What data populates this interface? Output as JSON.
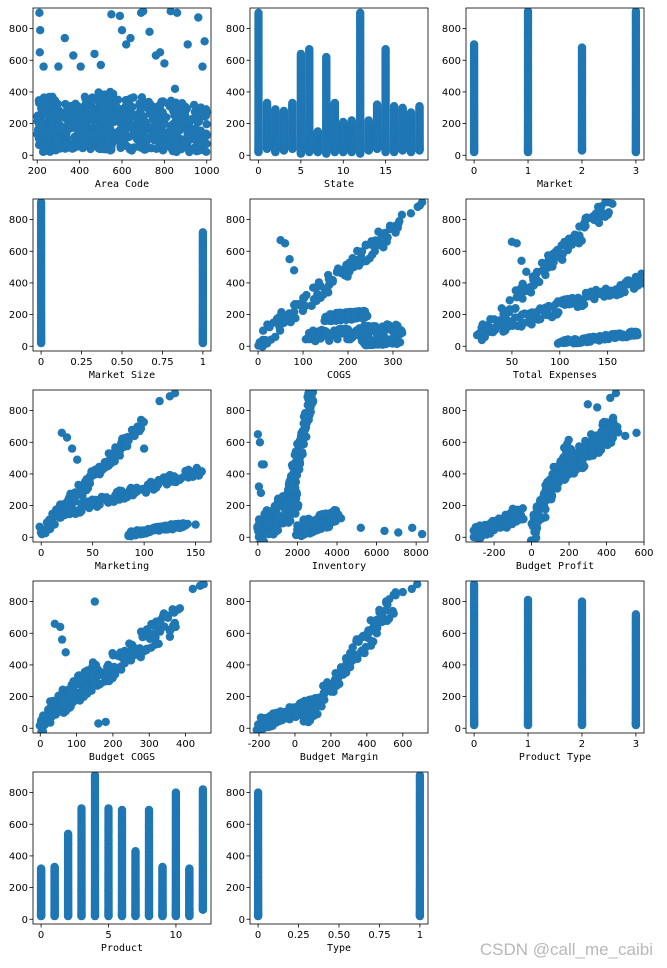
{
  "figure": {
    "layout": "5 rows x 3 columns grid of scatter subplots",
    "marker_color": "#1f77b4",
    "watermark": "CSDN @call_me_caibi"
  },
  "chart_data": [
    {
      "type": "scatter",
      "xlabel": "Area Code",
      "ylabel": "",
      "xlim": [
        180,
        1020
      ],
      "ylim": [
        -30,
        930
      ],
      "xticks": [
        200,
        400,
        600,
        800,
        1000
      ],
      "yticks": [
        0,
        200,
        400,
        600,
        800
      ],
      "clusters": [
        {
          "x": [
            200,
            290
          ],
          "y": [
            20,
            370
          ]
        },
        {
          "x": [
            280,
            440
          ],
          "y": [
            40,
            330
          ]
        },
        {
          "x": [
            420,
            560
          ],
          "y": [
            30,
            400
          ]
        },
        {
          "x": [
            500,
            700
          ],
          "y": [
            30,
            380
          ]
        },
        {
          "x": [
            680,
            860
          ],
          "y": [
            30,
            350
          ]
        },
        {
          "x": [
            840,
            1000
          ],
          "y": [
            20,
            330
          ]
        }
      ],
      "points": [
        [
          210,
          900
        ],
        [
          214,
          790
        ],
        [
          212,
          650
        ],
        [
          230,
          560
        ],
        [
          300,
          560
        ],
        [
          330,
          740
        ],
        [
          370,
          630
        ],
        [
          405,
          560
        ],
        [
          470,
          640
        ],
        [
          500,
          570
        ],
        [
          550,
          890
        ],
        [
          590,
          880
        ],
        [
          600,
          790
        ],
        [
          620,
          700
        ],
        [
          640,
          740
        ],
        [
          690,
          900
        ],
        [
          700,
          910
        ],
        [
          730,
          780
        ],
        [
          760,
          630
        ],
        [
          780,
          650
        ],
        [
          800,
          580
        ],
        [
          830,
          910
        ],
        [
          860,
          900
        ],
        [
          910,
          700
        ],
        [
          960,
          870
        ],
        [
          990,
          720
        ],
        [
          980,
          560
        ],
        [
          520,
          350
        ],
        [
          850,
          420
        ]
      ]
    },
    {
      "type": "scatter",
      "xlabel": "State",
      "ylabel": "",
      "xlim": [
        -1,
        20
      ],
      "ylim": [
        -30,
        930
      ],
      "xticks": [
        0,
        5,
        10,
        15
      ],
      "yticks": [
        0,
        200,
        400,
        600,
        800
      ],
      "columns": [
        {
          "x": 0,
          "y": [
            20,
            900
          ]
        },
        {
          "x": 1,
          "y": [
            40,
            330
          ]
        },
        {
          "x": 2,
          "y": [
            20,
            290
          ]
        },
        {
          "x": 3,
          "y": [
            30,
            280
          ]
        },
        {
          "x": 4,
          "y": [
            40,
            330
          ]
        },
        {
          "x": 5,
          "y": [
            10,
            640
          ]
        },
        {
          "x": 6,
          "y": [
            20,
            670
          ]
        },
        {
          "x": 7,
          "y": [
            20,
            150
          ]
        },
        {
          "x": 8,
          "y": [
            10,
            620
          ]
        },
        {
          "x": 9,
          "y": [
            20,
            330
          ]
        },
        {
          "x": 10,
          "y": [
            20,
            210
          ]
        },
        {
          "x": 11,
          "y": [
            20,
            220
          ]
        },
        {
          "x": 12,
          "y": [
            10,
            900
          ]
        },
        {
          "x": 13,
          "y": [
            30,
            220
          ]
        },
        {
          "x": 14,
          "y": [
            40,
            320
          ]
        },
        {
          "x": 15,
          "y": [
            20,
            670
          ]
        },
        {
          "x": 16,
          "y": [
            20,
            310
          ]
        },
        {
          "x": 17,
          "y": [
            30,
            300
          ]
        },
        {
          "x": 18,
          "y": [
            20,
            270
          ]
        },
        {
          "x": 19,
          "y": [
            30,
            310
          ]
        }
      ]
    },
    {
      "type": "scatter",
      "xlabel": "Market",
      "ylabel": "",
      "xlim": [
        -0.15,
        3.15
      ],
      "ylim": [
        -30,
        930
      ],
      "xticks": [
        0,
        1,
        2,
        3
      ],
      "yticks": [
        0,
        200,
        400,
        600,
        800
      ],
      "columns": [
        {
          "x": 0,
          "y": [
            20,
            700
          ]
        },
        {
          "x": 1,
          "y": [
            20,
            910
          ]
        },
        {
          "x": 2,
          "y": [
            30,
            680
          ]
        },
        {
          "x": 3,
          "y": [
            20,
            910
          ]
        }
      ]
    },
    {
      "type": "scatter",
      "xlabel": "Market Size",
      "ylabel": "",
      "xlim": [
        -0.05,
        1.05
      ],
      "ylim": [
        -30,
        930
      ],
      "xticks": [
        0.0,
        0.25,
        0.5,
        0.75,
        1.0
      ],
      "yticks": [
        0,
        200,
        400,
        600,
        800
      ],
      "columns": [
        {
          "x": 0,
          "y": [
            20,
            910
          ]
        },
        {
          "x": 1,
          "y": [
            20,
            720
          ]
        }
      ]
    },
    {
      "type": "scatter",
      "xlabel": "COGS",
      "ylabel": "",
      "xlim": [
        -18,
        378
      ],
      "ylim": [
        -30,
        930
      ],
      "xticks": [
        0,
        100,
        200,
        300
      ],
      "yticks": [
        0,
        200,
        400,
        600,
        800
      ],
      "bands": [
        {
          "from": [
            0,
            30
          ],
          "to": [
            320,
            780
          ],
          "spread": 55
        },
        {
          "from": [
            110,
            60
          ],
          "to": [
            320,
            110
          ],
          "spread": 40
        },
        {
          "from": [
            150,
            180
          ],
          "to": [
            240,
            200
          ],
          "spread": 25
        },
        {
          "from": [
            235,
            20
          ],
          "to": [
            310,
            30
          ],
          "spread": 15
        }
      ],
      "points": [
        [
          50,
          670
        ],
        [
          60,
          650
        ],
        [
          70,
          550
        ],
        [
          80,
          480
        ],
        [
          360,
          890
        ],
        [
          365,
          910
        ],
        [
          355,
          880
        ],
        [
          320,
          830
        ],
        [
          340,
          840
        ],
        [
          310,
          130
        ]
      ]
    },
    {
      "type": "scatter",
      "xlabel": "Total Expenses",
      "ylabel": "",
      "xlim": [
        2,
        188
      ],
      "ylim": [
        -30,
        930
      ],
      "xticks": [
        50,
        100,
        150
      ],
      "yticks": [
        0,
        200,
        400,
        600,
        800
      ],
      "bands": [
        {
          "from": [
            12,
            30
          ],
          "to": [
            150,
            900
          ],
          "spread": 60
        },
        {
          "from": [
            40,
            120
          ],
          "to": [
            185,
            420
          ],
          "spread": 40
        },
        {
          "from": [
            100,
            20
          ],
          "to": [
            180,
            80
          ],
          "spread": 15
        }
      ],
      "points": [
        [
          50,
          660
        ],
        [
          55,
          650
        ],
        [
          60,
          540
        ],
        [
          65,
          470
        ],
        [
          140,
          880
        ],
        [
          150,
          910
        ],
        [
          155,
          900
        ],
        [
          120,
          650
        ],
        [
          185,
          410
        ],
        [
          175,
          80
        ]
      ]
    },
    {
      "type": "scatter",
      "xlabel": "Marketing",
      "ylabel": "",
      "xlim": [
        -8,
        165
      ],
      "ylim": [
        -30,
        930
      ],
      "xticks": [
        0,
        50,
        100,
        150
      ],
      "yticks": [
        0,
        200,
        400,
        600,
        800
      ],
      "bands": [
        {
          "from": [
            0,
            30
          ],
          "to": [
            100,
            720
          ],
          "spread": 40
        },
        {
          "from": [
            20,
            150
          ],
          "to": [
            155,
            420
          ],
          "spread": 30
        },
        {
          "from": [
            85,
            20
          ],
          "to": [
            140,
            80
          ],
          "spread": 15
        }
      ],
      "points": [
        [
          20,
          660
        ],
        [
          25,
          630
        ],
        [
          30,
          560
        ],
        [
          35,
          490
        ],
        [
          125,
          890
        ],
        [
          130,
          910
        ],
        [
          115,
          860
        ],
        [
          100,
          560
        ],
        [
          155,
          410
        ],
        [
          150,
          80
        ]
      ]
    },
    {
      "type": "scatter",
      "xlabel": "Inventory",
      "ylabel": "",
      "xlim": [
        -400,
        8600
      ],
      "ylim": [
        -30,
        930
      ],
      "xticks": [
        0,
        2000,
        4000,
        6000,
        8000
      ],
      "yticks": [
        0,
        200,
        400,
        600,
        800
      ],
      "bands": [
        {
          "from": [
            0,
            20
          ],
          "to": [
            2000,
            250
          ],
          "spread": 100
        },
        {
          "from": [
            1500,
            200
          ],
          "to": [
            2700,
            900
          ],
          "spread": 60
        },
        {
          "from": [
            2000,
            50
          ],
          "to": [
            4000,
            130
          ],
          "spread": 50
        }
      ],
      "points": [
        [
          0,
          650
        ],
        [
          100,
          600
        ],
        [
          200,
          460
        ],
        [
          300,
          460
        ],
        [
          50,
          320
        ],
        [
          150,
          280
        ],
        [
          4200,
          120
        ],
        [
          5200,
          60
        ],
        [
          6400,
          40
        ],
        [
          7100,
          30
        ],
        [
          7800,
          60
        ],
        [
          8300,
          20
        ],
        [
          2600,
          900
        ],
        [
          2650,
          910
        ]
      ]
    },
    {
      "type": "scatter",
      "xlabel": "Budget Profit",
      "ylabel": "",
      "xlim": [
        -350,
        600
      ],
      "ylim": [
        -30,
        930
      ],
      "xticks": [
        -200,
        0,
        200,
        400,
        600
      ],
      "yticks": [
        0,
        200,
        400,
        600,
        800
      ],
      "bands": [
        {
          "from": [
            -300,
            20
          ],
          "to": [
            -50,
            150
          ],
          "spread": 40
        },
        {
          "from": [
            0,
            30
          ],
          "to": [
            200,
            550
          ],
          "spread": 80
        },
        {
          "from": [
            150,
            400
          ],
          "to": [
            450,
            700
          ],
          "spread": 80
        }
      ],
      "points": [
        [
          -300,
          30
        ],
        [
          -250,
          40
        ],
        [
          -200,
          60
        ],
        [
          -150,
          90
        ],
        [
          -100,
          180
        ],
        [
          420,
          880
        ],
        [
          450,
          910
        ],
        [
          560,
          660
        ],
        [
          500,
          640
        ],
        [
          350,
          820
        ],
        [
          300,
          840
        ]
      ]
    },
    {
      "type": "scatter",
      "xlabel": "Budget COGS",
      "ylabel": "",
      "xlim": [
        -20,
        470
      ],
      "ylim": [
        -30,
        930
      ],
      "xticks": [
        0,
        100,
        200,
        300,
        400
      ],
      "yticks": [
        0,
        200,
        400,
        600,
        800
      ],
      "bands": [
        {
          "from": [
            0,
            30
          ],
          "to": [
            160,
            380
          ],
          "spread": 70
        },
        {
          "from": [
            80,
            200
          ],
          "to": [
            380,
            700
          ],
          "spread": 80
        }
      ],
      "points": [
        [
          40,
          660
        ],
        [
          55,
          640
        ],
        [
          60,
          560
        ],
        [
          70,
          480
        ],
        [
          440,
          900
        ],
        [
          450,
          910
        ],
        [
          420,
          880
        ],
        [
          380,
          750
        ],
        [
          150,
          800
        ],
        [
          280,
          600
        ],
        [
          160,
          30
        ],
        [
          180,
          40
        ]
      ]
    },
    {
      "type": "scatter",
      "xlabel": "Budget Margin",
      "ylabel": "",
      "xlim": [
        -250,
        740
      ],
      "ylim": [
        -30,
        930
      ],
      "xticks": [
        -200,
        0,
        200,
        400,
        600
      ],
      "yticks": [
        0,
        200,
        400,
        600,
        800
      ],
      "bands": [
        {
          "from": [
            -200,
            20
          ],
          "to": [
            100,
            150
          ],
          "spread": 40
        },
        {
          "from": [
            50,
            40
          ],
          "to": [
            550,
            800
          ],
          "spread": 70
        }
      ],
      "points": [
        [
          650,
          880
        ],
        [
          680,
          910
        ],
        [
          600,
          860
        ],
        [
          560,
          840
        ],
        [
          -180,
          30
        ],
        [
          -150,
          40
        ]
      ]
    },
    {
      "type": "scatter",
      "xlabel": "Product Type",
      "ylabel": "",
      "xlim": [
        -0.15,
        3.15
      ],
      "ylim": [
        -30,
        930
      ],
      "xticks": [
        0,
        1,
        2,
        3
      ],
      "yticks": [
        0,
        200,
        400,
        600,
        800
      ],
      "columns": [
        {
          "x": 0,
          "y": [
            20,
            910
          ]
        },
        {
          "x": 1,
          "y": [
            20,
            810
          ]
        },
        {
          "x": 2,
          "y": [
            20,
            800
          ]
        },
        {
          "x": 3,
          "y": [
            20,
            720
          ]
        }
      ]
    },
    {
      "type": "scatter",
      "xlabel": "Product",
      "ylabel": "",
      "xlim": [
        -0.6,
        12.6
      ],
      "ylim": [
        -30,
        930
      ],
      "xticks": [
        0,
        5,
        10
      ],
      "yticks": [
        0,
        200,
        400,
        600,
        800
      ],
      "columns": [
        {
          "x": 0,
          "y": [
            20,
            320
          ]
        },
        {
          "x": 1,
          "y": [
            20,
            330
          ]
        },
        {
          "x": 2,
          "y": [
            20,
            540
          ]
        },
        {
          "x": 3,
          "y": [
            20,
            700
          ]
        },
        {
          "x": 4,
          "y": [
            20,
            910
          ]
        },
        {
          "x": 5,
          "y": [
            20,
            700
          ]
        },
        {
          "x": 6,
          "y": [
            20,
            690
          ]
        },
        {
          "x": 7,
          "y": [
            20,
            430
          ]
        },
        {
          "x": 8,
          "y": [
            20,
            690
          ]
        },
        {
          "x": 9,
          "y": [
            20,
            330
          ]
        },
        {
          "x": 10,
          "y": [
            20,
            800
          ]
        },
        {
          "x": 11,
          "y": [
            20,
            320
          ]
        },
        {
          "x": 12,
          "y": [
            60,
            820
          ]
        }
      ]
    },
    {
      "type": "scatter",
      "xlabel": "Type",
      "ylabel": "",
      "xlim": [
        -0.05,
        1.05
      ],
      "ylim": [
        -30,
        930
      ],
      "xticks": [
        0.0,
        0.25,
        0.5,
        0.75,
        1.0
      ],
      "yticks": [
        0,
        200,
        400,
        600,
        800
      ],
      "columns": [
        {
          "x": 0,
          "y": [
            20,
            800
          ]
        },
        {
          "x": 1,
          "y": [
            20,
            910
          ]
        }
      ]
    }
  ]
}
